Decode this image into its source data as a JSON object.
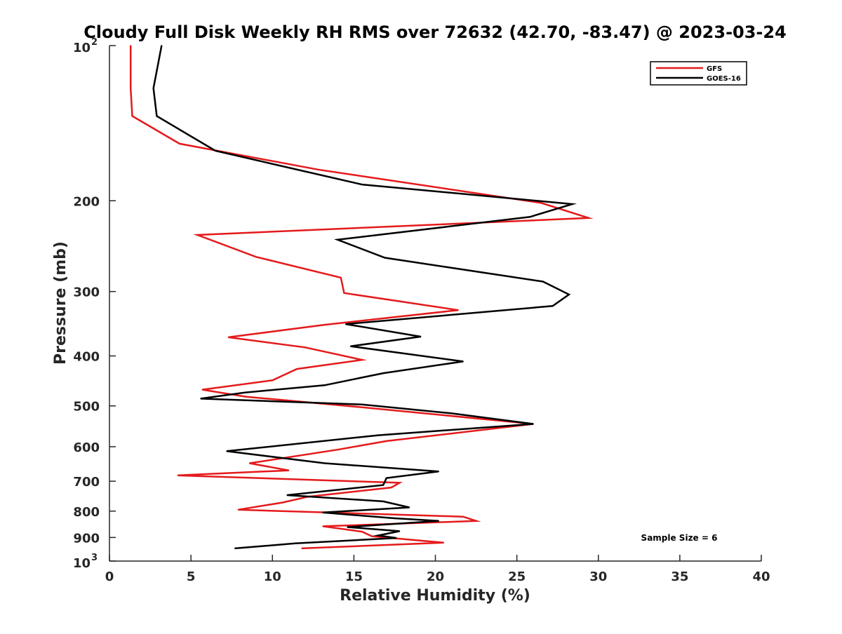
{
  "chart_data": {
    "type": "line",
    "title": "Cloudy Full Disk Weekly RH RMS over 72632 (42.70, -83.47) @ 2023-03-24",
    "xlabel": "Relative Humidity (%)",
    "ylabel": "Pressure (mb)",
    "xlim": [
      0,
      40
    ],
    "ylim": [
      100,
      1000
    ],
    "yscale": "log",
    "y_reversed": true,
    "grid": false,
    "legend_position": "top-right",
    "x_ticks": [
      {
        "value": 0,
        "label": "0"
      },
      {
        "value": 5,
        "label": "5"
      },
      {
        "value": 10,
        "label": "10"
      },
      {
        "value": 15,
        "label": "15"
      },
      {
        "value": 20,
        "label": "20"
      },
      {
        "value": 25,
        "label": "25"
      },
      {
        "value": 30,
        "label": "30"
      },
      {
        "value": 35,
        "label": "35"
      },
      {
        "value": 40,
        "label": "40"
      }
    ],
    "y_ticks": [
      {
        "value": 100,
        "base": "10",
        "exp": "2"
      },
      {
        "value": 200,
        "label": "200"
      },
      {
        "value": 300,
        "label": "300"
      },
      {
        "value": 400,
        "label": "400"
      },
      {
        "value": 500,
        "label": "500"
      },
      {
        "value": 600,
        "label": "600"
      },
      {
        "value": 700,
        "label": "700"
      },
      {
        "value": 800,
        "label": "800"
      },
      {
        "value": 900,
        "label": "900"
      },
      {
        "value": 1000,
        "base": "10",
        "exp": "3"
      }
    ],
    "series": [
      {
        "name": "GFS",
        "color": "#e41a1c",
        "points": [
          [
            1.3,
            100
          ],
          [
            1.3,
            121
          ],
          [
            1.4,
            137
          ],
          [
            4.3,
            155
          ],
          [
            12.8,
            174
          ],
          [
            26.5,
            202
          ],
          [
            29.4,
            216
          ],
          [
            5.4,
            233
          ],
          [
            9.0,
            257
          ],
          [
            14.2,
            282
          ],
          [
            14.4,
            302
          ],
          [
            21.4,
            326
          ],
          [
            13.2,
            348
          ],
          [
            7.3,
            368
          ],
          [
            12.0,
            385
          ],
          [
            15.5,
            407
          ],
          [
            11.5,
            424
          ],
          [
            10.0,
            446
          ],
          [
            5.7,
            465
          ],
          [
            8.4,
            480
          ],
          [
            15.5,
            503
          ],
          [
            26.0,
            542
          ],
          [
            17.0,
            585
          ],
          [
            14.0,
            608
          ],
          [
            8.6,
            646
          ],
          [
            11.0,
            667
          ],
          [
            4.2,
            682
          ],
          [
            17.8,
            705
          ],
          [
            17.3,
            720
          ],
          [
            12.2,
            750
          ],
          [
            10.6,
            770
          ],
          [
            7.9,
            795
          ],
          [
            21.7,
            820
          ],
          [
            22.5,
            836
          ],
          [
            13.1,
            856
          ],
          [
            15.5,
            877
          ],
          [
            16.1,
            895
          ],
          [
            20.5,
            921
          ],
          [
            11.8,
            945
          ]
        ]
      },
      {
        "name": "GOES-16",
        "color": "#000000",
        "points": [
          [
            3.2,
            100
          ],
          [
            2.7,
            121
          ],
          [
            2.9,
            137
          ],
          [
            6.5,
            160
          ],
          [
            15.5,
            186
          ],
          [
            28.4,
            203
          ],
          [
            25.8,
            215
          ],
          [
            14.0,
            238
          ],
          [
            16.9,
            258
          ],
          [
            26.6,
            287
          ],
          [
            28.2,
            304
          ],
          [
            27.2,
            320
          ],
          [
            14.5,
            347
          ],
          [
            19.1,
            367
          ],
          [
            14.8,
            383
          ],
          [
            21.7,
            410
          ],
          [
            16.8,
            432
          ],
          [
            13.2,
            456
          ],
          [
            8.3,
            471
          ],
          [
            5.6,
            484
          ],
          [
            15.5,
            497
          ],
          [
            21.0,
            517
          ],
          [
            26.0,
            542
          ],
          [
            16.5,
            570
          ],
          [
            7.2,
            612
          ],
          [
            13.2,
            646
          ],
          [
            20.2,
            670
          ],
          [
            17.0,
            690
          ],
          [
            16.8,
            712
          ],
          [
            10.9,
            745
          ],
          [
            16.8,
            766
          ],
          [
            18.4,
            787
          ],
          [
            13.1,
            805
          ],
          [
            17.5,
            826
          ],
          [
            20.2,
            836
          ],
          [
            14.6,
            859
          ],
          [
            17.8,
            875
          ],
          [
            16.5,
            892
          ],
          [
            17.6,
            902
          ],
          [
            11.4,
            924
          ],
          [
            7.7,
            945
          ]
        ]
      }
    ],
    "annotation": "Sample Size = 6"
  }
}
